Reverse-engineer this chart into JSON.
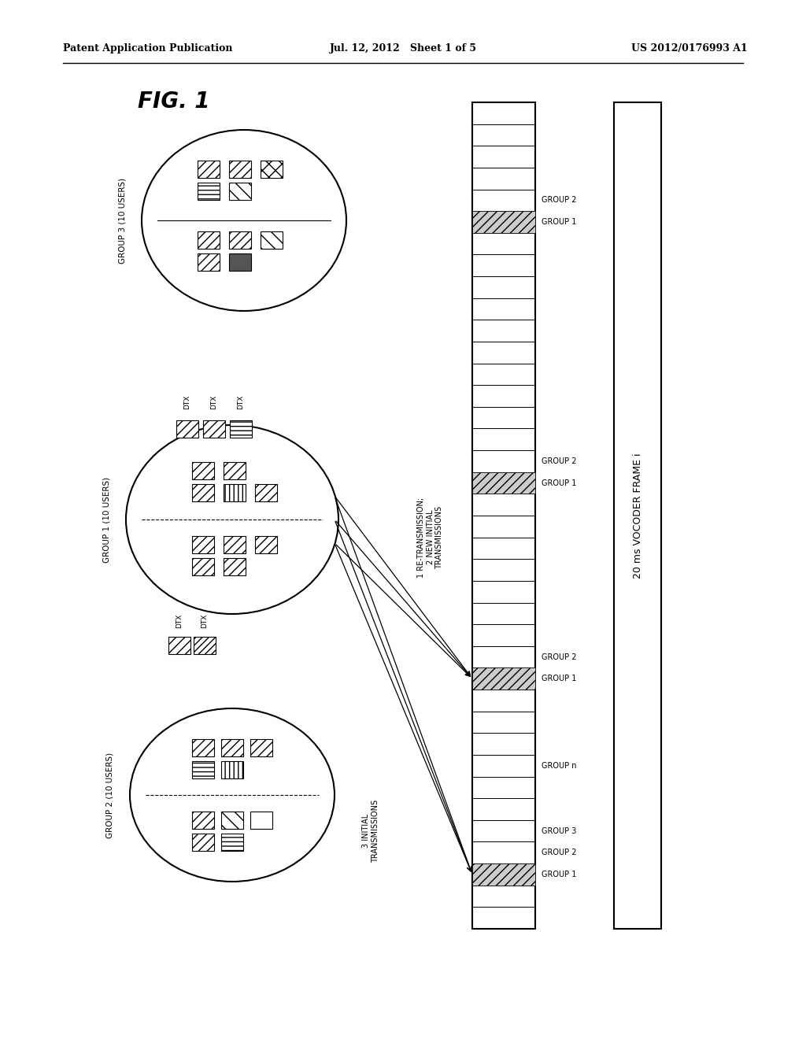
{
  "title_header_left": "Patent Application Publication",
  "title_header_center": "Jul. 12, 2012   Sheet 1 of 5",
  "title_header_right": "US 2012/0176993 A1",
  "fig_label": "FIG. 1",
  "bg_color": "#ffffff",
  "group3_label": "GROUP 3 (10 USERS)",
  "group1_label": "GROUP 1 (10 USERS)",
  "group2_label": "GROUP 2 (10 USERS)",
  "vocoder_label": "20 ms VOCODER FRAME i",
  "retrans_label": "1 RE-TRANSMISSION;\n2 NEW INITIAL\nTRANSMISSIONS",
  "initial_label": "3 INITIAL\nTRANSMISSIONS",
  "timeline_group_n": "GROUP n"
}
